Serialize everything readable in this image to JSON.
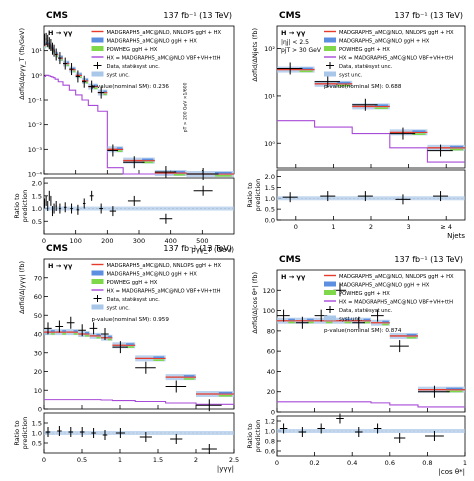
{
  "common": {
    "experiment": "CMS",
    "lumi": "137 fb",
    "lumi_exp": "-1",
    "energy": "(13 TeV)",
    "process": "H → γγ",
    "ratio_label": [
      "Ratio to",
      "prediction"
    ],
    "legend": {
      "nnlops": "MADGRAPH5_aMC@NLO, NNLOPS ggH + HX",
      "mg": "MADGRAPH5_aMC@NLO ggH + HX",
      "powheg": "POWHEG ggH + HX",
      "hx": "HX = MADGRAPH5_aMC@NLO VBF+VH+ttH",
      "data": "Data, stat⊕syst unc.",
      "syst": "syst unc."
    },
    "colors": {
      "nnlops": "#e53b2c",
      "mg": "#5c8fe0",
      "powheg": "#7fd84a",
      "hx": "#a84ad8",
      "syst": "#a9c7e8",
      "data": "#000000"
    }
  },
  "chart_data": [
    {
      "type": "bar",
      "panel": "pt",
      "title": "",
      "ylabel": "Δσfid/Δpγγ_T (fb/GeV)",
      "xlabel": "pγγ_T (GeV)",
      "ylog": true,
      "ylim": [
        0.0001,
        100
      ],
      "xlim": [
        0,
        600
      ],
      "ratio_ylim": [
        0,
        2.2
      ],
      "pvalue": "p-value(nominal SM): 0.236",
      "note": "pT > 200 GeV ×1/600",
      "bins": [
        [
          0,
          5
        ],
        [
          5,
          10
        ],
        [
          10,
          15
        ],
        [
          15,
          20
        ],
        [
          20,
          25
        ],
        [
          25,
          30
        ],
        [
          30,
          35
        ],
        [
          35,
          45
        ],
        [
          45,
          60
        ],
        [
          60,
          80
        ],
        [
          80,
          100
        ],
        [
          100,
          120
        ],
        [
          120,
          140
        ],
        [
          140,
          170
        ],
        [
          170,
          200
        ],
        [
          200,
          250
        ],
        [
          250,
          350
        ],
        [
          350,
          450
        ],
        [
          450,
          600
        ]
      ],
      "data": [
        28,
        30,
        25,
        20,
        17,
        12,
        10,
        7,
        5,
        3,
        1.8,
        0.9,
        0.55,
        0.35,
        0.2,
        0.0009,
        0.0003,
        0.00012,
        6e-05
      ],
      "prediction": [
        16,
        18,
        17,
        15,
        13,
        11,
        9,
        7,
        5,
        3,
        1.7,
        1.0,
        0.6,
        0.35,
        0.2,
        0.001,
        0.00035,
        0.00011,
        4e-05
      ],
      "hx": [
        0.9,
        1.0,
        1.0,
        0.95,
        0.9,
        0.85,
        0.8,
        0.7,
        0.55,
        0.4,
        0.25,
        0.16,
        0.1,
        0.06,
        0.035,
        0.00018,
        7e-05,
        3e-05,
        1e-05
      ],
      "ratio": [
        1.2,
        1.3,
        1.1,
        1.5,
        1.3,
        0.9,
        1.0,
        1.1,
        1.0,
        1.05,
        1.0,
        0.95,
        1.2,
        1.5,
        1.0,
        0.9,
        1.3,
        0.6,
        1.7
      ]
    },
    {
      "type": "bar",
      "panel": "njets",
      "title": "",
      "selection": [
        "|ηj| < 2.5",
        "pjT > 30 GeV"
      ],
      "ylabel": "Δσfid/ΔNjets (fb)",
      "xlabel": "Njets",
      "ylog": true,
      "ylim": [
        0.3,
        300
      ],
      "xlim": [
        -0.5,
        4.5
      ],
      "ratio_ylim": [
        0,
        2.3
      ],
      "pvalue": "p-value(nominal SM): 0.688",
      "categories": [
        "0",
        "1",
        "2",
        "3",
        "≥ 4"
      ],
      "data": [
        38,
        20,
        6.5,
        1.6,
        0.7
      ],
      "prediction": [
        36,
        18,
        6,
        1.7,
        0.8
      ],
      "hx": [
        3,
        2.2,
        1.6,
        0.8,
        0.4
      ],
      "ratio": [
        1.05,
        1.1,
        1.1,
        0.95,
        1.1
      ]
    },
    {
      "type": "bar",
      "panel": "y",
      "title": "",
      "ylabel": "Δσfid/Δ|yγγ| (fb)",
      "xlabel": "|yγγ|",
      "ylog": false,
      "ylim": [
        0,
        80
      ],
      "xlim": [
        0,
        2.5
      ],
      "ratio_ylim": [
        0,
        2
      ],
      "pvalue": "p-value(nominal SM): 0.959",
      "bins": [
        [
          0,
          0.15
        ],
        [
          0.15,
          0.3
        ],
        [
          0.3,
          0.45
        ],
        [
          0.45,
          0.6
        ],
        [
          0.6,
          0.75
        ],
        [
          0.75,
          0.9
        ],
        [
          0.9,
          1.2
        ],
        [
          1.2,
          1.6
        ],
        [
          1.6,
          2.0
        ],
        [
          2.0,
          2.5
        ]
      ],
      "data": [
        43,
        44,
        46,
        42,
        43,
        40,
        33,
        22,
        12,
        2
      ],
      "prediction": [
        41,
        41,
        41,
        40,
        39,
        38,
        34,
        27,
        17,
        8
      ],
      "hx": [
        5,
        5,
        5,
        5,
        5,
        4.8,
        4.5,
        4,
        3.2,
        2.5
      ],
      "ratio": [
        1.05,
        1.1,
        1.05,
        1.05,
        1.0,
        0.9,
        1.0,
        0.8,
        0.7,
        0.2
      ]
    },
    {
      "type": "bar",
      "panel": "costheta",
      "title": "",
      "ylabel": "Δσfid/Δ|cos θ*| (fb)",
      "xlabel": "|cos θ*|",
      "ylog": false,
      "ylim": [
        0,
        140
      ],
      "xlim": [
        0,
        1
      ],
      "ratio_ylim": [
        0.5,
        1.3
      ],
      "pvalue": "p-value(nominal SM): 0.874",
      "bins": [
        [
          0,
          0.1
        ],
        [
          0.1,
          0.2
        ],
        [
          0.2,
          0.3
        ],
        [
          0.3,
          0.4
        ],
        [
          0.4,
          0.5
        ],
        [
          0.5,
          0.6
        ],
        [
          0.6,
          0.75
        ],
        [
          0.75,
          1.0
        ]
      ],
      "data": [
        95,
        88,
        95,
        120,
        88,
        95,
        65,
        20
      ],
      "prediction": [
        90,
        90,
        90,
        90,
        90,
        88,
        75,
        22
      ],
      "hx": [
        10,
        10,
        10,
        10,
        10,
        9,
        7,
        5
      ],
      "ratio": [
        1.05,
        0.98,
        1.05,
        1.25,
        0.98,
        1.05,
        0.86,
        0.9
      ]
    }
  ]
}
